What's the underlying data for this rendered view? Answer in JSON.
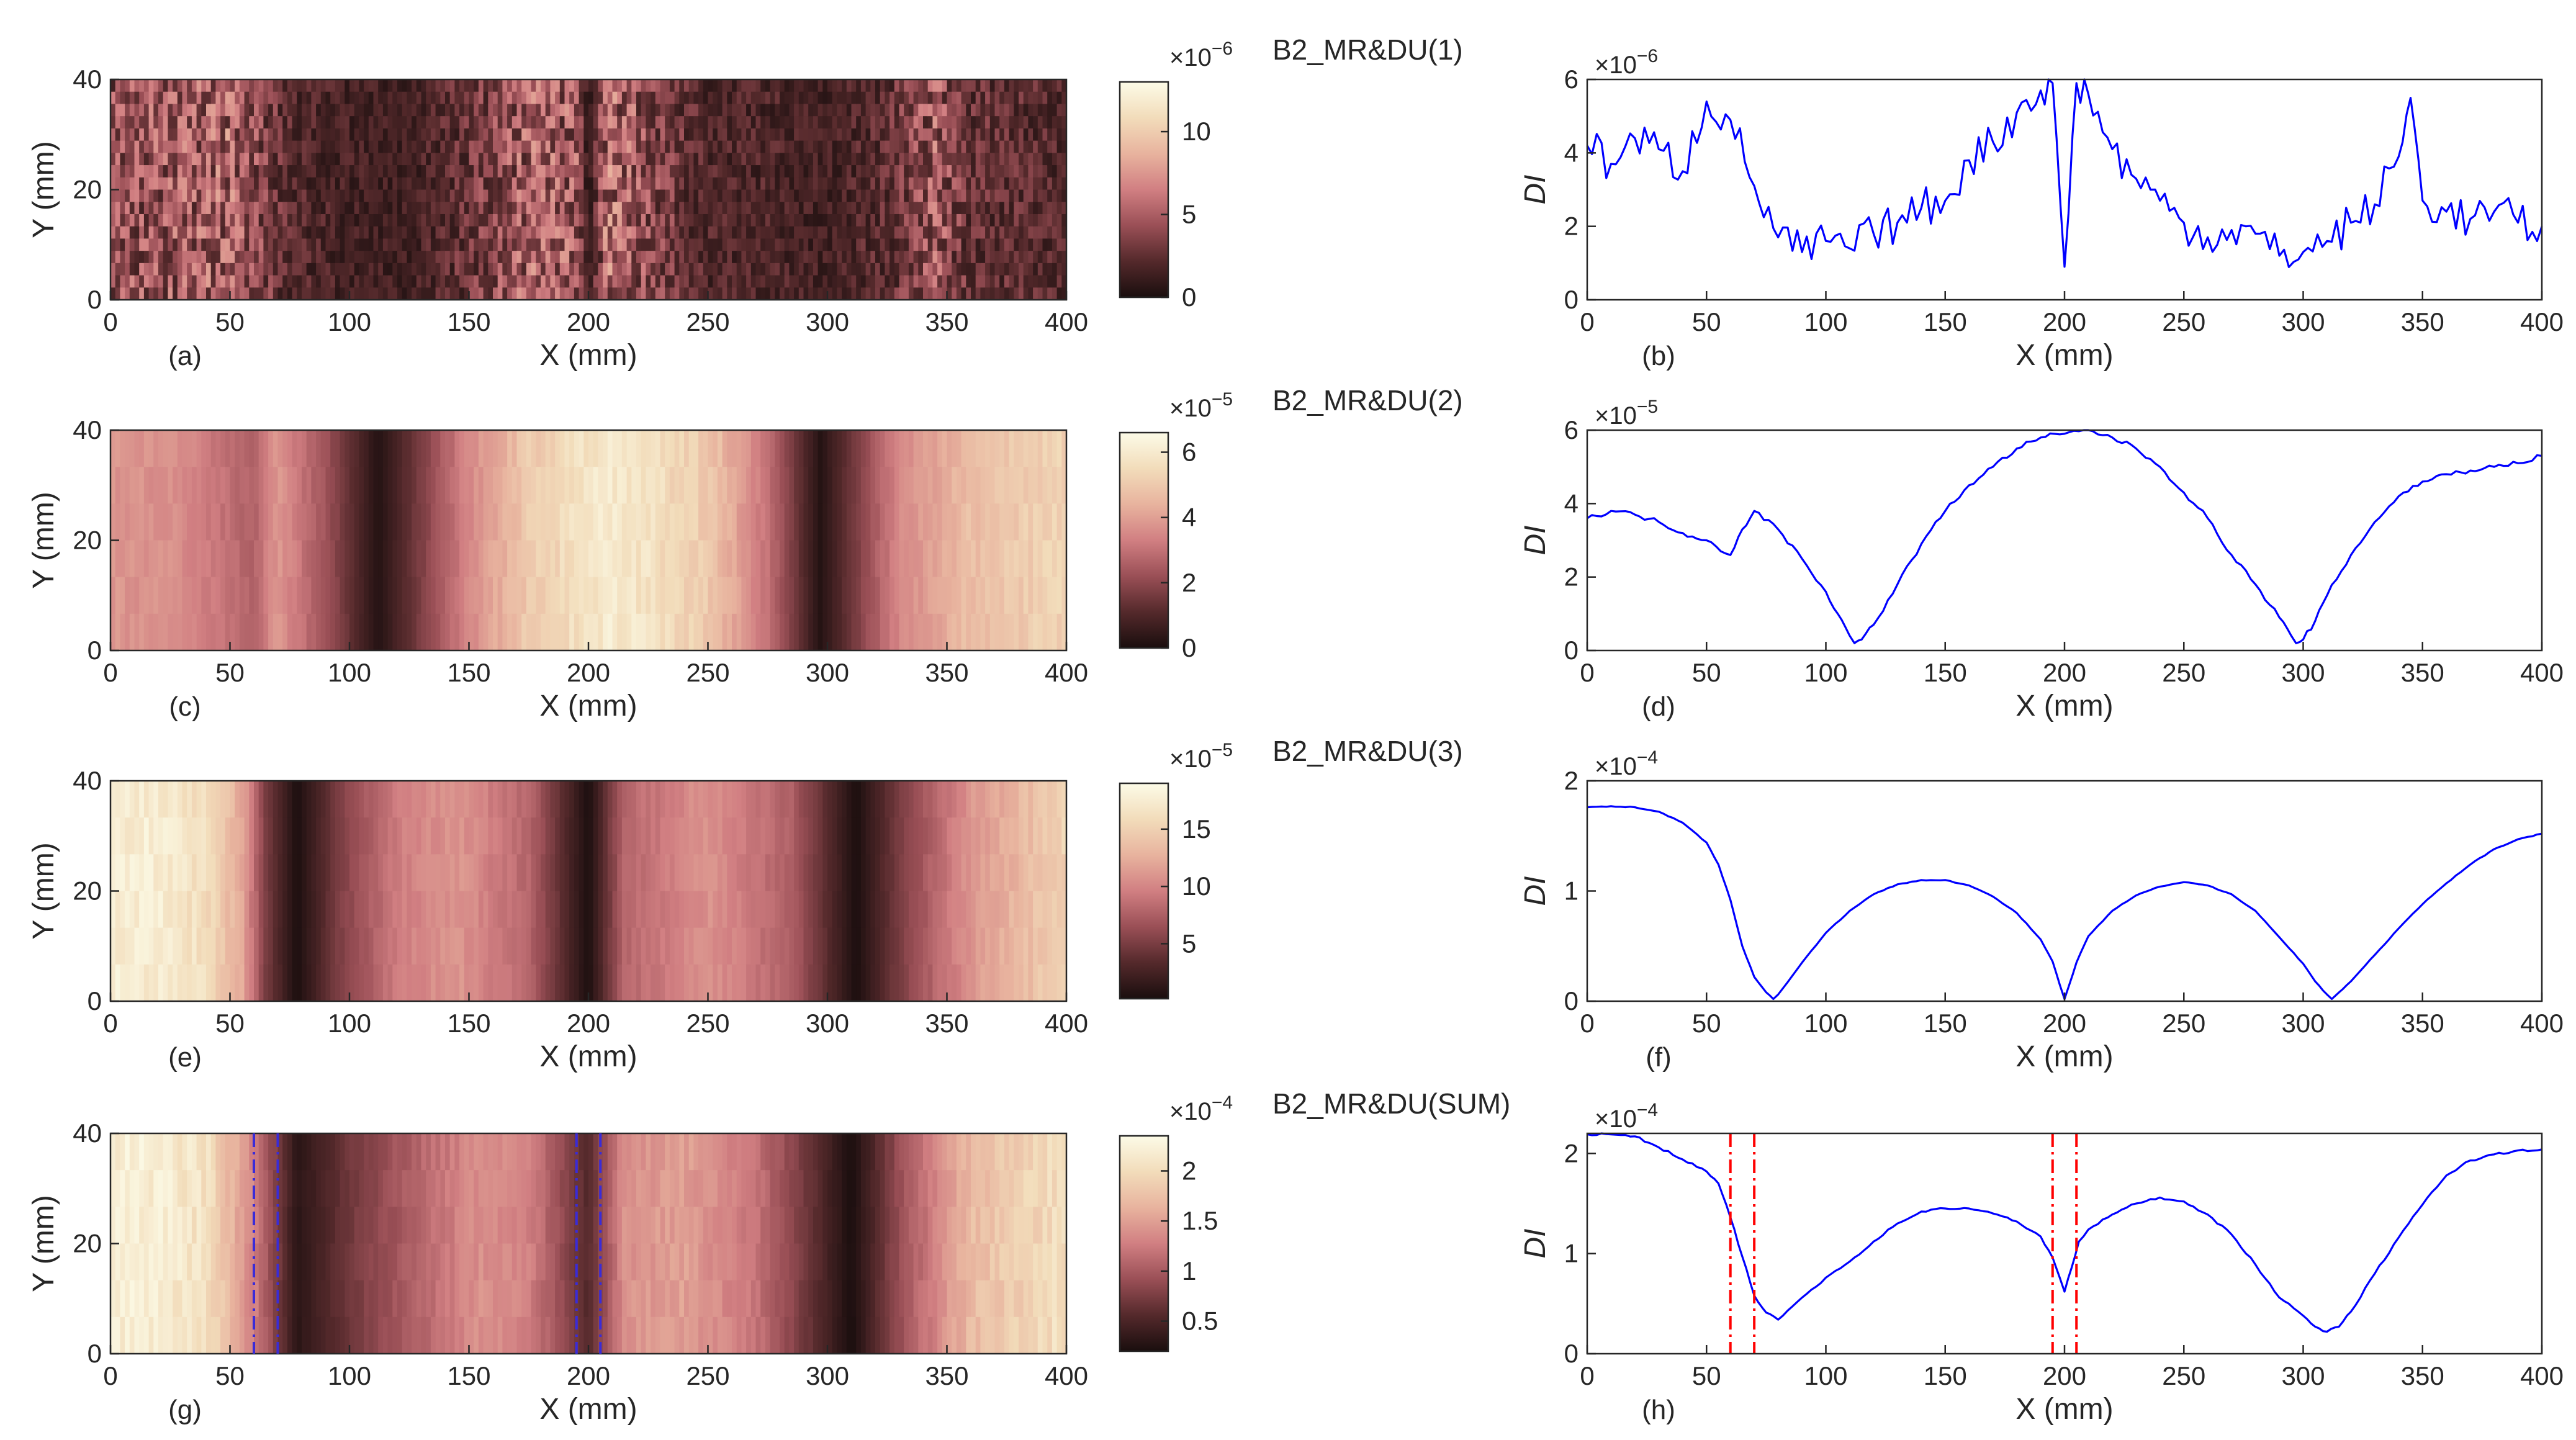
{
  "figure": "B2 MR&DU damage-index maps and profiles",
  "colors": {
    "line": "#0000ff",
    "marker_red": "#ff0000",
    "marker_blue": "#3a2bd8",
    "axis": "#262626"
  },
  "colormap": [
    "#1a0e0e",
    "#54292b",
    "#9a4f56",
    "#d17f82",
    "#e8b39e",
    "#f2dcba",
    "#fcfbe7"
  ],
  "chart_data": [
    {
      "type": "heatmap",
      "panel": "(a)",
      "title": "B2_MR&DU(1)",
      "xlabel": "X (mm)",
      "ylabel": "Y (mm)",
      "xlim": [
        0,
        400
      ],
      "ylim": [
        0,
        40
      ],
      "xticks": [
        "0",
        "50",
        "100",
        "150",
        "200",
        "250",
        "300",
        "350",
        "400"
      ],
      "yticks": [
        "0",
        "20",
        "40"
      ],
      "colorbar": {
        "ticks": [
          0,
          5,
          10
        ],
        "tick_labels": [
          "0",
          "5",
          "10"
        ],
        "range": [
          0,
          13
        ],
        "exp_base": "×10",
        "exp": "−6"
      },
      "profile": [
        [
          0,
          4.2
        ],
        [
          25,
          4.5
        ],
        [
          50,
          5.2
        ],
        [
          75,
          2.2
        ],
        [
          100,
          1.6
        ],
        [
          125,
          1.4
        ],
        [
          150,
          2.8
        ],
        [
          175,
          5
        ],
        [
          195,
          4.6
        ],
        [
          200,
          0.9
        ],
        [
          208,
          5.7
        ],
        [
          225,
          3.9
        ],
        [
          250,
          1.9
        ],
        [
          275,
          1.9
        ],
        [
          300,
          1.5
        ],
        [
          325,
          2.4
        ],
        [
          345,
          4.8
        ],
        [
          360,
          2.6
        ],
        [
          380,
          2.4
        ],
        [
          400,
          2
        ]
      ],
      "variant": "noise"
    },
    {
      "type": "line",
      "panel": "(b)",
      "xlabel": "X (mm)",
      "ylabel": "DI",
      "xlim": [
        0,
        400
      ],
      "ylim": [
        0,
        6
      ],
      "xticks": [
        "0",
        "50",
        "100",
        "150",
        "200",
        "250",
        "300",
        "350",
        "400"
      ],
      "yticks": [
        "0",
        "2",
        "4",
        "6"
      ],
      "exponent": {
        "base": "×10",
        "exp": "−6"
      },
      "x": [
        0,
        10,
        20,
        30,
        40,
        50,
        60,
        70,
        80,
        90,
        100,
        110,
        120,
        130,
        140,
        150,
        160,
        170,
        180,
        190,
        195,
        200,
        205,
        210,
        220,
        230,
        240,
        250,
        260,
        270,
        280,
        290,
        300,
        310,
        320,
        330,
        340,
        345,
        350,
        360,
        370,
        380,
        390,
        400
      ],
      "y": [
        4.2,
        3.7,
        4.4,
        4.1,
        3.5,
        5.4,
        4.9,
        3.1,
        1.7,
        1.3,
        1.6,
        1.4,
        1.8,
        2.1,
        2.5,
        2.7,
        3.8,
        4.3,
        5.1,
        5.7,
        5.9,
        0.9,
        5.9,
        5.6,
        4.1,
        3.3,
        2.7,
        2.1,
        1.7,
        1.9,
        1.8,
        1.2,
        1.3,
        1.6,
        2.1,
        2.6,
        3.9,
        5.5,
        2.7,
        2.4,
        2.2,
        2.4,
        2.1,
        2.0
      ],
      "noise": 0.55
    },
    {
      "type": "heatmap",
      "panel": "(c)",
      "title": "B2_MR&DU(2)",
      "xlabel": "X (mm)",
      "ylabel": "Y (mm)",
      "xlim": [
        0,
        400
      ],
      "ylim": [
        0,
        40
      ],
      "xticks": [
        "0",
        "50",
        "100",
        "150",
        "200",
        "250",
        "300",
        "350",
        "400"
      ],
      "yticks": [
        "0",
        "20",
        "40"
      ],
      "colorbar": {
        "ticks": [
          0,
          2,
          4,
          6
        ],
        "tick_labels": [
          "0",
          "2",
          "4",
          "6"
        ],
        "range": [
          0,
          6.6
        ],
        "exp_base": "×10",
        "exp": "−5"
      },
      "profile": [
        [
          0,
          3.8
        ],
        [
          30,
          3.6
        ],
        [
          60,
          2.6
        ],
        [
          70,
          3.8
        ],
        [
          90,
          2.3
        ],
        [
          112,
          0.2
        ],
        [
          125,
          1.3
        ],
        [
          150,
          3.5
        ],
        [
          175,
          5
        ],
        [
          200,
          5.8
        ],
        [
          210,
          6
        ],
        [
          225,
          5.7
        ],
        [
          250,
          5
        ],
        [
          275,
          3
        ],
        [
          297,
          0.2
        ],
        [
          310,
          1.5
        ],
        [
          330,
          3.5
        ],
        [
          360,
          4.7
        ],
        [
          400,
          5.3
        ]
      ],
      "variant": "smooth"
    },
    {
      "type": "line",
      "panel": "(d)",
      "xlabel": "X (mm)",
      "ylabel": "DI",
      "xlim": [
        0,
        400
      ],
      "ylim": [
        0,
        6
      ],
      "xticks": [
        "0",
        "50",
        "100",
        "150",
        "200",
        "250",
        "300",
        "350",
        "400"
      ],
      "yticks": [
        "0",
        "2",
        "4",
        "6"
      ],
      "exponent": {
        "base": "×10",
        "exp": "−5"
      },
      "x": [
        0,
        10,
        20,
        30,
        40,
        50,
        60,
        65,
        70,
        80,
        90,
        100,
        105,
        110,
        112,
        115,
        120,
        130,
        140,
        150,
        160,
        170,
        180,
        190,
        200,
        210,
        220,
        230,
        240,
        250,
        260,
        270,
        280,
        290,
        295,
        297,
        300,
        305,
        310,
        320,
        330,
        340,
        350,
        360,
        370,
        380,
        390,
        400
      ],
      "y": [
        3.6,
        3.8,
        3.7,
        3.5,
        3.2,
        3.0,
        2.6,
        3.3,
        3.8,
        3.3,
        2.5,
        1.6,
        1.0,
        0.4,
        0.2,
        0.3,
        0.7,
        1.8,
        2.9,
        3.8,
        4.5,
        5.0,
        5.5,
        5.8,
        5.9,
        6.0,
        5.8,
        5.5,
        5.0,
        4.3,
        3.6,
        2.6,
        1.8,
        0.9,
        0.4,
        0.2,
        0.3,
        0.8,
        1.5,
        2.6,
        3.5,
        4.2,
        4.6,
        4.8,
        4.9,
        5.0,
        5.1,
        5.3
      ],
      "noise": 0.07
    },
    {
      "type": "heatmap",
      "panel": "(e)",
      "title": "B2_MR&DU(3)",
      "xlabel": "X (mm)",
      "ylabel": "Y (mm)",
      "xlim": [
        0,
        400
      ],
      "ylim": [
        0,
        40
      ],
      "xticks": [
        "0",
        "50",
        "100",
        "150",
        "200",
        "250",
        "300",
        "350",
        "400"
      ],
      "yticks": [
        "0",
        "20",
        "40"
      ],
      "colorbar": {
        "ticks": [
          5,
          10,
          15
        ],
        "tick_labels": [
          "5",
          "10",
          "15"
        ],
        "range": [
          0.2,
          19
        ],
        "exp_base": "×10",
        "exp": "−5"
      },
      "profile": [
        [
          0,
          17.5
        ],
        [
          20,
          17.5
        ],
        [
          40,
          16
        ],
        [
          55,
          12
        ],
        [
          65,
          5
        ],
        [
          78,
          0.3
        ],
        [
          95,
          5
        ],
        [
          120,
          9.5
        ],
        [
          145,
          11
        ],
        [
          175,
          8
        ],
        [
          200,
          0.3
        ],
        [
          215,
          8
        ],
        [
          250,
          10.8
        ],
        [
          285,
          7.5
        ],
        [
          312,
          0.3
        ],
        [
          330,
          5
        ],
        [
          360,
          11
        ],
        [
          400,
          15.2
        ]
      ],
      "variant": "smooth"
    },
    {
      "type": "line",
      "panel": "(f)",
      "xlabel": "X (mm)",
      "ylabel": "DI",
      "xlim": [
        0,
        400
      ],
      "ylim": [
        0,
        2
      ],
      "xticks": [
        "0",
        "50",
        "100",
        "150",
        "200",
        "250",
        "300",
        "350",
        "400"
      ],
      "yticks": [
        "0",
        "1",
        "2"
      ],
      "exponent": {
        "base": "×10",
        "exp": "−4"
      },
      "x": [
        0,
        10,
        20,
        30,
        40,
        50,
        55,
        60,
        65,
        70,
        75,
        78,
        80,
        90,
        100,
        110,
        120,
        130,
        140,
        150,
        160,
        170,
        180,
        190,
        195,
        198,
        200,
        202,
        205,
        210,
        220,
        230,
        240,
        250,
        260,
        270,
        280,
        290,
        300,
        305,
        310,
        312,
        315,
        320,
        330,
        340,
        350,
        360,
        370,
        380,
        390,
        400
      ],
      "y": [
        1.76,
        1.77,
        1.76,
        1.72,
        1.62,
        1.44,
        1.24,
        0.92,
        0.5,
        0.22,
        0.08,
        0.02,
        0.06,
        0.35,
        0.62,
        0.82,
        0.97,
        1.06,
        1.1,
        1.1,
        1.05,
        0.95,
        0.8,
        0.56,
        0.36,
        0.15,
        0.02,
        0.15,
        0.35,
        0.59,
        0.82,
        0.96,
        1.04,
        1.08,
        1.05,
        0.97,
        0.82,
        0.58,
        0.34,
        0.18,
        0.06,
        0.02,
        0.08,
        0.18,
        0.42,
        0.66,
        0.88,
        1.07,
        1.24,
        1.38,
        1.47,
        1.52
      ],
      "noise": 0.004
    },
    {
      "type": "heatmap",
      "panel": "(g)",
      "title": "B2_MR&DU(SUM)",
      "xlabel": "X (mm)",
      "ylabel": "Y (mm)",
      "xlim": [
        0,
        400
      ],
      "ylim": [
        0,
        40
      ],
      "xticks": [
        "0",
        "50",
        "100",
        "150",
        "200",
        "250",
        "300",
        "350",
        "400"
      ],
      "yticks": [
        "0",
        "20",
        "40"
      ],
      "colorbar": {
        "ticks": [
          0.5,
          1,
          1.5,
          2
        ],
        "tick_labels": [
          "0.5",
          "1",
          "1.5",
          "2"
        ],
        "range": [
          0.2,
          2.35
        ],
        "exp_base": "×10",
        "exp": "−4"
      },
      "profile": [
        [
          0,
          2.2
        ],
        [
          20,
          2.2
        ],
        [
          40,
          2.05
        ],
        [
          60,
          1.3
        ],
        [
          78,
          0.3
        ],
        [
          100,
          0.7
        ],
        [
          130,
          1.1
        ],
        [
          155,
          1.4
        ],
        [
          175,
          1.3
        ],
        [
          200,
          0.55
        ],
        [
          215,
          1.4
        ],
        [
          240,
          1.5
        ],
        [
          270,
          1.2
        ],
        [
          295,
          0.6
        ],
        [
          310,
          0.2
        ],
        [
          330,
          0.9
        ],
        [
          360,
          1.7
        ],
        [
          400,
          2.05
        ]
      ],
      "variant": "smooth",
      "markers": [
        60,
        70,
        195,
        205
      ]
    },
    {
      "type": "line",
      "panel": "(h)",
      "xlabel": "X (mm)",
      "ylabel": "DI",
      "xlim": [
        0,
        400
      ],
      "ylim": [
        0,
        2.2
      ],
      "xticks": [
        "0",
        "50",
        "100",
        "150",
        "200",
        "250",
        "300",
        "350",
        "400"
      ],
      "yticks": [
        "0",
        "1",
        "2"
      ],
      "exponent": {
        "base": "×10",
        "exp": "−4"
      },
      "x": [
        0,
        10,
        20,
        30,
        40,
        50,
        55,
        60,
        65,
        70,
        75,
        80,
        90,
        100,
        110,
        120,
        130,
        140,
        150,
        160,
        170,
        180,
        190,
        195,
        198,
        200,
        203,
        206,
        210,
        220,
        230,
        240,
        250,
        260,
        270,
        280,
        290,
        300,
        305,
        310,
        315,
        320,
        330,
        340,
        350,
        360,
        370,
        380,
        390,
        400
      ],
      "y": [
        2.19,
        2.19,
        2.17,
        2.06,
        1.94,
        1.82,
        1.7,
        1.36,
        0.97,
        0.58,
        0.41,
        0.34,
        0.56,
        0.76,
        0.92,
        1.12,
        1.3,
        1.42,
        1.45,
        1.45,
        1.4,
        1.32,
        1.17,
        0.96,
        0.76,
        0.62,
        0.86,
        1.12,
        1.24,
        1.39,
        1.5,
        1.56,
        1.52,
        1.39,
        1.19,
        0.89,
        0.56,
        0.38,
        0.27,
        0.22,
        0.27,
        0.42,
        0.8,
        1.16,
        1.49,
        1.78,
        1.93,
        1.99,
        2.03,
        2.04
      ],
      "noise": 0.012,
      "markers": [
        60,
        70,
        195,
        205
      ]
    }
  ]
}
